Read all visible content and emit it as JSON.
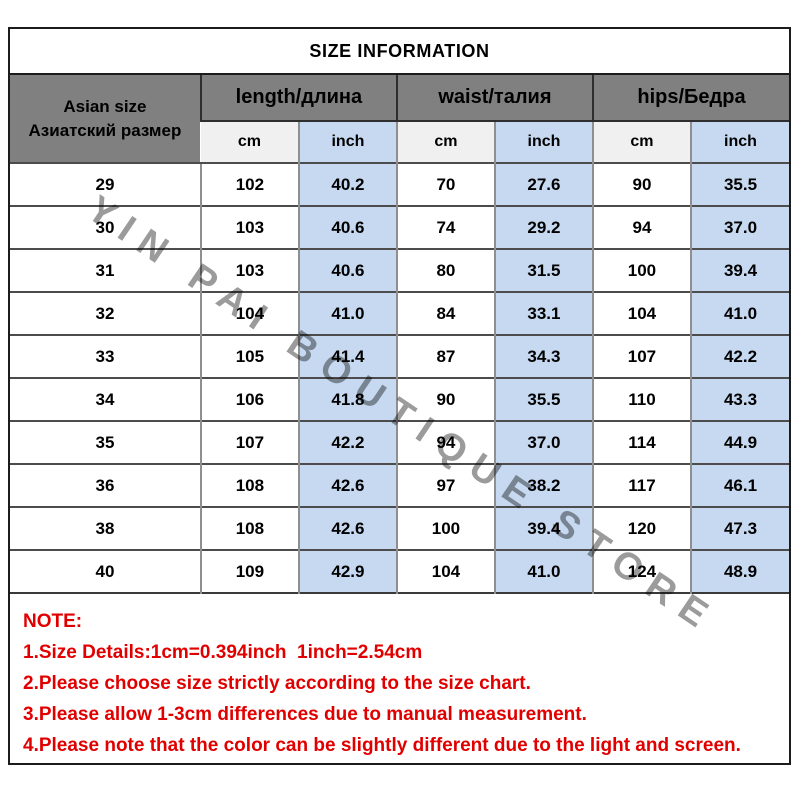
{
  "title": "SIZE INFORMATION",
  "watermark": "YIN PAI BOUTIQUE STORE",
  "chart_data": {
    "type": "table",
    "title": "SIZE INFORMATION",
    "row_header": {
      "en": "Asian size",
      "ru": "Азиатский размер"
    },
    "column_groups": [
      "length/длина",
      "waist/талия",
      "hips/Бедра"
    ],
    "units": {
      "cm": "cm",
      "inch": "inch"
    },
    "columns": [
      "size",
      "length_cm",
      "length_inch",
      "waist_cm",
      "waist_inch",
      "hips_cm",
      "hips_inch"
    ],
    "rows": [
      [
        "29",
        "102",
        "40.2",
        "70",
        "27.6",
        "90",
        "35.5"
      ],
      [
        "30",
        "103",
        "40.6",
        "74",
        "29.2",
        "94",
        "37.0"
      ],
      [
        "31",
        "103",
        "40.6",
        "80",
        "31.5",
        "100",
        "39.4"
      ],
      [
        "32",
        "104",
        "41.0",
        "84",
        "33.1",
        "104",
        "41.0"
      ],
      [
        "33",
        "105",
        "41.4",
        "87",
        "34.3",
        "107",
        "42.2"
      ],
      [
        "34",
        "106",
        "41.8",
        "90",
        "35.5",
        "110",
        "43.3"
      ],
      [
        "35",
        "107",
        "42.2",
        "94",
        "37.0",
        "114",
        "44.9"
      ],
      [
        "36",
        "108",
        "42.6",
        "97",
        "38.2",
        "117",
        "46.1"
      ],
      [
        "38",
        "108",
        "42.6",
        "100",
        "39.4",
        "120",
        "47.3"
      ],
      [
        "40",
        "109",
        "42.9",
        "104",
        "41.0",
        "124",
        "48.9"
      ]
    ]
  },
  "note": {
    "heading": "NOTE:",
    "lines": [
      "1.Size Details:1cm=0.394inch  1inch=2.54cm",
      "2.Please choose size strictly according to the size chart.",
      "3.Please allow 1-3cm differences due to manual measurement.",
      "4.Please note that the color can be slightly different due to the light and screen."
    ]
  },
  "colors": {
    "header_gray": "#808080",
    "cm_bg": "#f0f0f0",
    "inch_bg": "#c6d9f0",
    "note_red": "#e10000",
    "watermark_gray": "#9b9b9b"
  }
}
